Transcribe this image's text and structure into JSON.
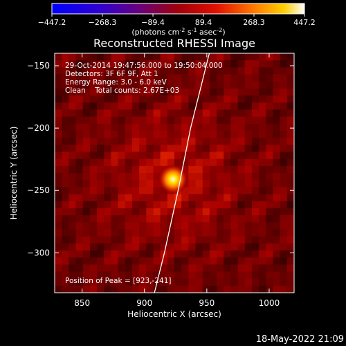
{
  "colorbar": {
    "ticks": [
      "-447.2",
      "-268.3",
      "-89.4",
      "89.4",
      "268.3",
      "447.2"
    ],
    "units_prefix": "(photons cm",
    "units_exp1": "-2",
    "units_mid": " s",
    "units_exp2": "-1",
    "units_mid2": " asec",
    "units_exp3": "-2",
    "units_suffix": ")"
  },
  "chart_data": {
    "type": "heatmap",
    "title": "Reconstructed RHESSI Image",
    "xlabel": "Heliocentric X (arcsec)",
    "ylabel": "Heliocentric Y (arcsec)",
    "xlim": [
      828,
      1020
    ],
    "ylim": [
      -332,
      -140
    ],
    "x_ticks": [
      850,
      900,
      950,
      1000
    ],
    "y_ticks": [
      -150,
      -200,
      -250,
      -300
    ],
    "x_tick_labels": [
      "850",
      "900",
      "950",
      "1000"
    ],
    "y_tick_labels": [
      "−150",
      "−200",
      "−250",
      "−300"
    ],
    "colorbar_range": [
      -447.2,
      447.2
    ],
    "peak": {
      "x": 923,
      "y": -241
    },
    "annotations": [
      "29-Oct-2014 19:47:56.000 to 19:50:04.000",
      "Detectors: 3F 6F 9F, Att 1",
      "Energy Range: 3.0 - 6.0 keV",
      "Clean    Total counts: 2.67E+03"
    ],
    "peak_label": "Position of Peak = [923,-241]",
    "limb_line": [
      [
        908,
        -332
      ],
      [
        916,
        -300
      ],
      [
        927,
        -250
      ],
      [
        937,
        -200
      ],
      [
        947,
        -160
      ],
      [
        952,
        -140
      ]
    ]
  },
  "footer": {
    "date": "18-May-2022 21:09"
  }
}
